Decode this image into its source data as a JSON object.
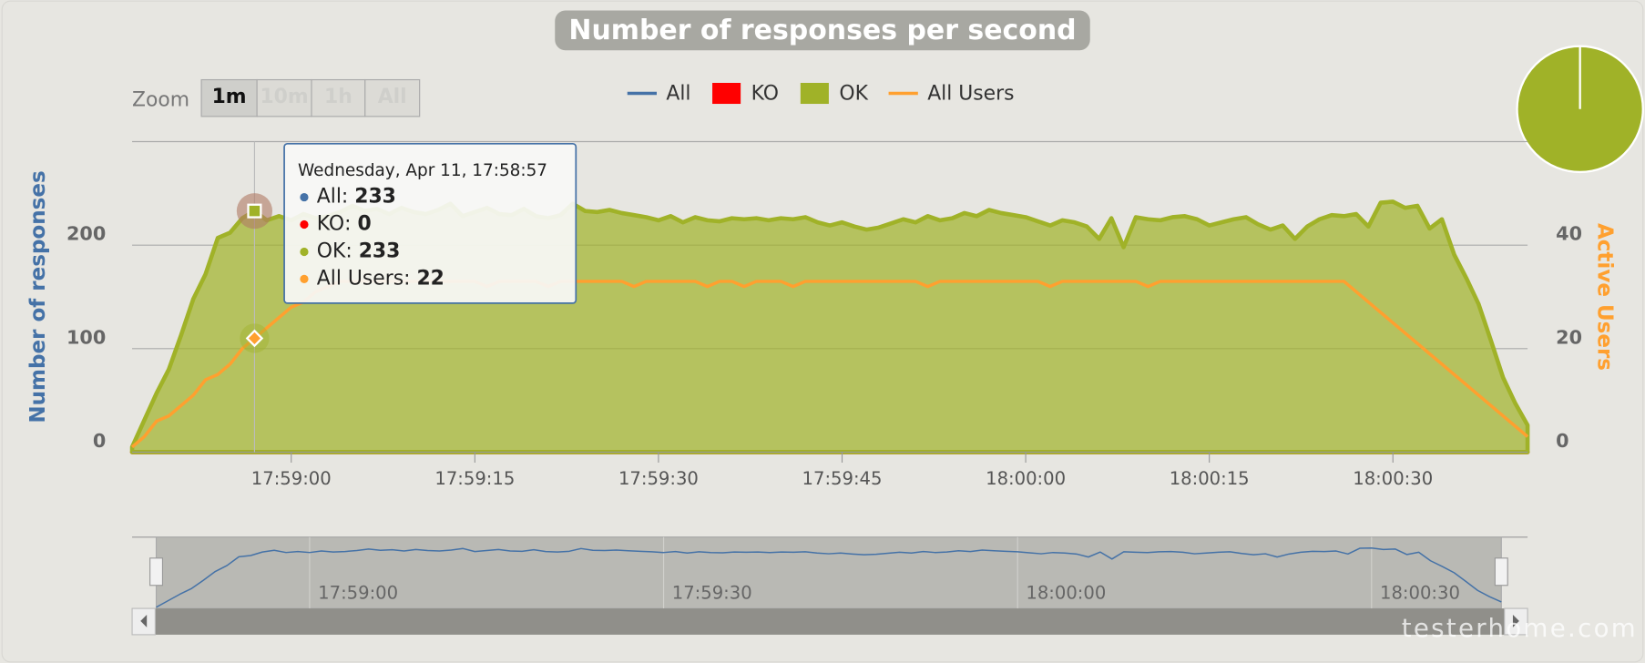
{
  "chart_data": {
    "type": "area",
    "title": "Number of responses per second",
    "zoom_label": "Zoom",
    "zoom_buttons": [
      "1m",
      "10m",
      "1h",
      "All"
    ],
    "y_label": "Number of responses",
    "y2_label": "Active Users",
    "categories": [
      "17:58:47",
      "17:58:48",
      "17:58:49",
      "17:58:50",
      "17:58:51",
      "17:58:52",
      "17:58:53",
      "17:58:54",
      "17:58:55",
      "17:58:56",
      "17:58:57",
      "17:58:58",
      "17:58:59",
      "17:59:00",
      "17:59:01",
      "17:59:02",
      "17:59:03",
      "17:59:04",
      "17:59:05",
      "17:59:06",
      "17:59:07",
      "17:59:08",
      "17:59:09",
      "17:59:10",
      "17:59:11",
      "17:59:12",
      "17:59:13",
      "17:59:14",
      "17:59:15",
      "17:59:16",
      "17:59:17",
      "17:59:18",
      "17:59:19",
      "17:59:20",
      "17:59:21",
      "17:59:22",
      "17:59:23",
      "17:59:24",
      "17:59:25",
      "17:59:26",
      "17:59:27",
      "17:59:28",
      "17:59:29",
      "17:59:30",
      "17:59:31",
      "17:59:32",
      "17:59:33",
      "17:59:34",
      "17:59:35",
      "17:59:36",
      "17:59:37",
      "17:59:38",
      "17:59:39",
      "17:59:40",
      "17:59:41",
      "17:59:42",
      "17:59:43",
      "17:59:44",
      "17:59:45",
      "17:59:46",
      "17:59:47",
      "17:59:48",
      "17:59:49",
      "17:59:50",
      "17:59:51",
      "17:59:52",
      "17:59:53",
      "17:59:54",
      "17:59:55",
      "17:59:56",
      "17:59:57",
      "17:59:58",
      "17:59:59",
      "18:00:00",
      "18:00:01",
      "18:00:02",
      "18:00:03",
      "18:00:04",
      "18:00:05",
      "18:00:06",
      "18:00:07",
      "18:00:08",
      "18:00:09",
      "18:00:10",
      "18:00:11",
      "18:00:12",
      "18:00:13",
      "18:00:14",
      "18:00:15",
      "18:00:16",
      "18:00:17",
      "18:00:18",
      "18:00:19",
      "18:00:20",
      "18:00:21",
      "18:00:22",
      "18:00:23",
      "18:00:24",
      "18:00:25",
      "18:00:26",
      "18:00:27",
      "18:00:28",
      "18:00:29",
      "18:00:30",
      "18:00:31",
      "18:00:32",
      "18:00:33",
      "18:00:34",
      "18:00:35",
      "18:00:36",
      "18:00:37",
      "18:00:38",
      "18:00:39",
      "18:00:40",
      "18:00:41"
    ],
    "xticks": [
      "17:59:00",
      "17:59:15",
      "17:59:30",
      "17:59:45",
      "18:00:00",
      "18:00:15",
      "18:00:30"
    ],
    "nav_xticks": [
      "17:59:00",
      "17:59:30",
      "18:00:00",
      "18:00:30"
    ],
    "ylim": [
      0,
      300
    ],
    "yticks": [
      0,
      100,
      200
    ],
    "y2lim": [
      0,
      60
    ],
    "y2ticks": [
      0,
      20,
      40
    ],
    "series": [
      {
        "name": "All",
        "color": "#4572a7",
        "values": [
          5,
          31,
          57,
          80,
          113,
          148,
          172,
          207,
          212,
          226,
          233,
          224,
          228,
          224,
          230,
          226,
          228,
          232,
          238,
          233,
          235,
          230,
          236,
          232,
          230,
          234,
          240,
          228,
          232,
          236,
          230,
          229,
          235,
          228,
          226,
          229,
          240,
          233,
          232,
          234,
          231,
          229,
          227,
          224,
          228,
          222,
          227,
          224,
          223,
          226,
          225,
          226,
          224,
          226,
          225,
          227,
          222,
          219,
          222,
          218,
          215,
          217,
          221,
          225,
          222,
          228,
          224,
          226,
          231,
          228,
          234,
          231,
          229,
          227,
          223,
          219,
          224,
          222,
          218,
          206,
          226,
          198,
          227,
          225,
          224,
          227,
          228,
          225,
          219,
          222,
          225,
          227,
          220,
          215,
          219,
          206,
          218,
          225,
          229,
          228,
          230,
          218,
          241,
          242,
          236,
          238,
          216,
          225,
          191,
          168,
          143,
          108,
          72,
          47,
          26
        ]
      },
      {
        "name": "KO",
        "color": "#ff0000",
        "values": [
          0,
          0,
          0,
          0,
          0,
          0,
          0,
          0,
          0,
          0,
          0,
          0,
          0,
          0,
          0,
          0,
          0,
          0,
          0,
          0,
          0,
          0,
          0,
          0,
          0,
          0,
          0,
          0,
          0,
          0,
          0,
          0,
          0,
          0,
          0,
          0,
          0,
          0,
          0,
          0,
          0,
          0,
          0,
          0,
          0,
          0,
          0,
          0,
          0,
          0,
          0,
          0,
          0,
          0,
          0,
          0,
          0,
          0,
          0,
          0,
          0,
          0,
          0,
          0,
          0,
          0,
          0,
          0,
          0,
          0,
          0,
          0,
          0,
          0,
          0,
          0,
          0,
          0,
          0,
          0,
          0,
          0,
          0,
          0,
          0,
          0,
          0,
          0,
          0,
          0,
          0,
          0,
          0,
          0,
          0,
          0,
          0,
          0,
          0,
          0,
          0,
          0,
          0,
          0,
          0,
          0,
          0,
          0,
          0,
          0,
          0,
          0,
          0,
          0,
          0
        ]
      },
      {
        "name": "OK",
        "color": "#a0b228",
        "values": [
          5,
          31,
          57,
          80,
          113,
          148,
          172,
          207,
          212,
          226,
          233,
          224,
          228,
          224,
          230,
          226,
          228,
          232,
          238,
          233,
          235,
          230,
          236,
          232,
          230,
          234,
          240,
          228,
          232,
          236,
          230,
          229,
          235,
          228,
          226,
          229,
          240,
          233,
          232,
          234,
          231,
          229,
          227,
          224,
          228,
          222,
          227,
          224,
          223,
          226,
          225,
          226,
          224,
          226,
          225,
          227,
          222,
          219,
          222,
          218,
          215,
          217,
          221,
          225,
          222,
          228,
          224,
          226,
          231,
          228,
          234,
          231,
          229,
          227,
          223,
          219,
          224,
          222,
          218,
          206,
          226,
          198,
          227,
          225,
          224,
          227,
          228,
          225,
          219,
          222,
          225,
          227,
          220,
          215,
          219,
          206,
          218,
          225,
          229,
          228,
          230,
          218,
          241,
          242,
          236,
          238,
          216,
          225,
          191,
          168,
          143,
          108,
          72,
          47,
          26
        ]
      },
      {
        "name": "All Users",
        "color": "#ffa02f",
        "axis": "y2",
        "values": [
          1,
          3,
          6,
          7,
          9,
          11,
          14,
          15,
          17,
          20,
          22,
          24,
          26,
          28,
          29,
          31,
          32,
          33,
          33,
          33,
          33,
          33,
          33,
          33,
          33,
          33,
          33,
          33,
          33,
          32,
          33,
          33,
          33,
          33,
          32,
          33,
          33,
          33,
          33,
          33,
          33,
          32,
          33,
          33,
          33,
          33,
          33,
          32,
          33,
          33,
          32,
          33,
          33,
          33,
          32,
          33,
          33,
          33,
          33,
          33,
          33,
          33,
          33,
          33,
          33,
          32,
          33,
          33,
          33,
          33,
          33,
          33,
          33,
          33,
          33,
          32,
          33,
          33,
          33,
          33,
          33,
          33,
          33,
          32,
          33,
          33,
          33,
          33,
          33,
          33,
          33,
          33,
          33,
          33,
          33,
          33,
          33,
          33,
          33,
          33,
          31,
          29,
          27,
          25,
          23,
          21,
          19,
          17,
          15,
          13,
          11,
          9,
          7,
          5,
          3
        ]
      }
    ],
    "grid": true,
    "tooltip": {
      "header": "Wednesday, Apr 11, 17:58:57",
      "index": 10
    },
    "watermark": "testerhome.com"
  }
}
